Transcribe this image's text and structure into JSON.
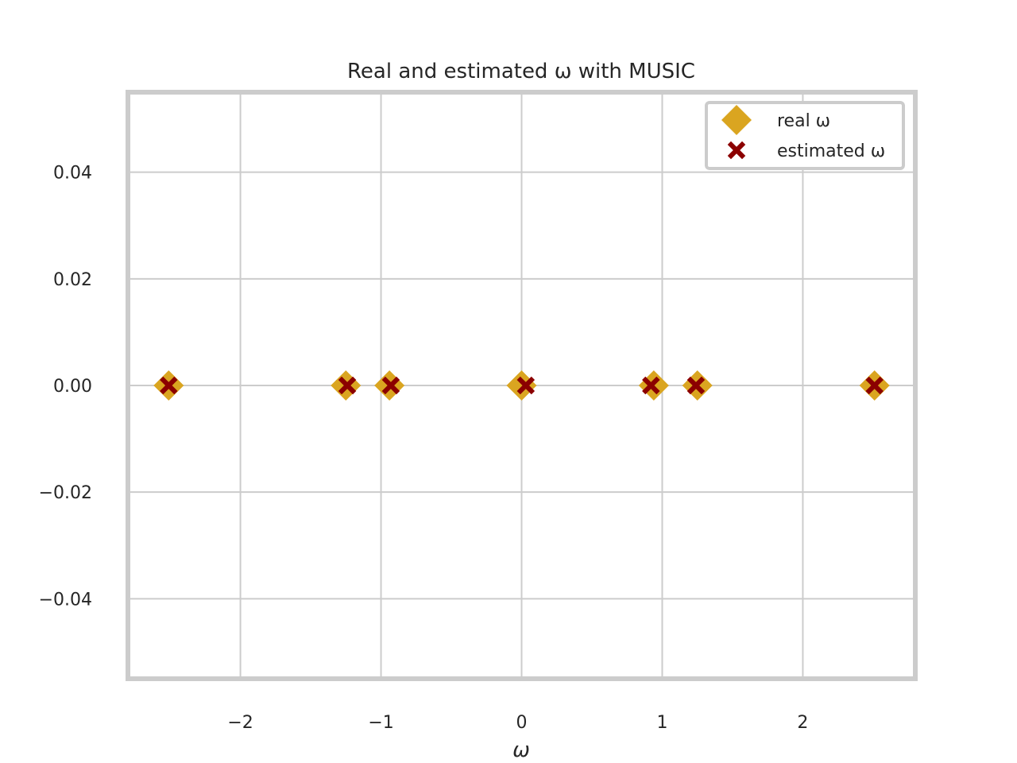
{
  "chart_data": {
    "type": "scatter",
    "title": "Real and estimated ω with MUSIC",
    "xlabel": "ω",
    "ylabel": "",
    "xlim": [
      -2.8,
      2.8
    ],
    "ylim": [
      -0.055,
      0.055
    ],
    "xticks": [
      {
        "value": -2,
        "label": "−2"
      },
      {
        "value": -1,
        "label": "−1"
      },
      {
        "value": 0,
        "label": "0"
      },
      {
        "value": 1,
        "label": "1"
      },
      {
        "value": 2,
        "label": "2"
      }
    ],
    "yticks": [
      {
        "value": 0.04,
        "label": "0.04"
      },
      {
        "value": 0.02,
        "label": "0.02"
      },
      {
        "value": 0.0,
        "label": "0.00"
      },
      {
        "value": -0.02,
        "label": "−0.02"
      },
      {
        "value": -0.04,
        "label": "−0.04"
      }
    ],
    "grid": true,
    "legend_position": "top-right",
    "series": [
      {
        "name": "real ω",
        "marker": "diamond",
        "color": "#DAA520",
        "points": [
          {
            "x": -2.51,
            "y": 0
          },
          {
            "x": -1.25,
            "y": 0
          },
          {
            "x": -0.94,
            "y": 0
          },
          {
            "x": 0.0,
            "y": 0
          },
          {
            "x": 0.94,
            "y": 0
          },
          {
            "x": 1.25,
            "y": 0
          },
          {
            "x": 2.51,
            "y": 0
          }
        ]
      },
      {
        "name": "estimated ω",
        "marker": "x-filled",
        "color": "#8B0000",
        "points": [
          {
            "x": -2.51,
            "y": 0
          },
          {
            "x": -1.24,
            "y": 0
          },
          {
            "x": -0.93,
            "y": 0
          },
          {
            "x": 0.03,
            "y": 0
          },
          {
            "x": 0.92,
            "y": 0
          },
          {
            "x": 1.24,
            "y": 0
          },
          {
            "x": 2.51,
            "y": 0
          }
        ]
      }
    ]
  }
}
